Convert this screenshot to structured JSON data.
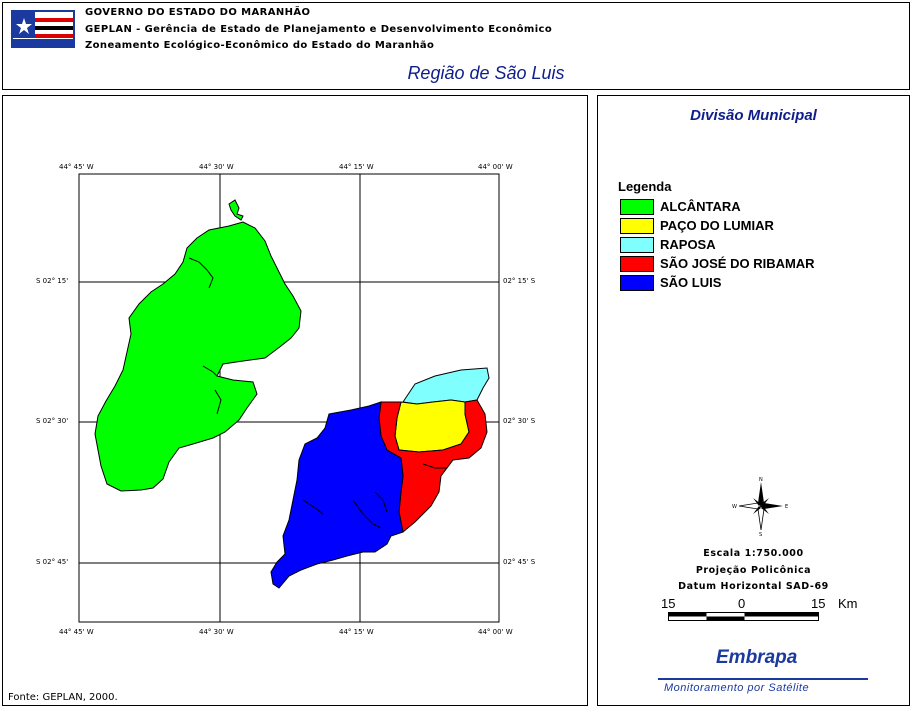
{
  "header": {
    "line1": "GOVERNO DO ESTADO DO MARANHÃO",
    "line2": "GEPLAN - Gerência de Estado de Planejamento e Desenvolvimento Econômico",
    "line3": "Zoneamento Ecológico-Econômico do Estado do Maranhão",
    "region_title": "Região de São Luis"
  },
  "map": {
    "top_labels": [
      "44° 45' W",
      "44° 30' W",
      "44° 15' W",
      "44° 00' W"
    ],
    "bottom_labels": [
      "44° 45' W",
      "44° 30' W",
      "44° 15' W",
      "44° 00' W"
    ],
    "left_labels": [
      "S 02° 15'",
      "S 02° 30'",
      "S 02° 45'"
    ],
    "right_labels": [
      "02° 15' S",
      "02° 30' S",
      "02° 45' S"
    ],
    "source": "Fonte: GEPLAN, 2000."
  },
  "side": {
    "title": "Divisão Municipal",
    "legend_title": "Legenda",
    "legend": [
      {
        "label": "ALCÂNTARA",
        "color": "#00ff00"
      },
      {
        "label": "PAÇO DO LUMIAR",
        "color": "#ffff00"
      },
      {
        "label": "RAPOSA",
        "color": "#80ffff"
      },
      {
        "label": "SÃO JOSÉ DO RIBAMAR",
        "color": "#ff0000"
      },
      {
        "label": "SÃO LUIS",
        "color": "#0000ff"
      }
    ],
    "compass": {
      "n": "N",
      "s": "S",
      "e": "E",
      "w": "W"
    },
    "scale_text": "Escala 1:750.000",
    "projection": "Projeção Policônica",
    "datum": "Datum Horizontal  SAD-69",
    "scale_numbers": [
      "15",
      "0",
      "15",
      "Km"
    ],
    "logo_text": "Embrapa",
    "monitoring": "Monitoramento por Satélite"
  }
}
